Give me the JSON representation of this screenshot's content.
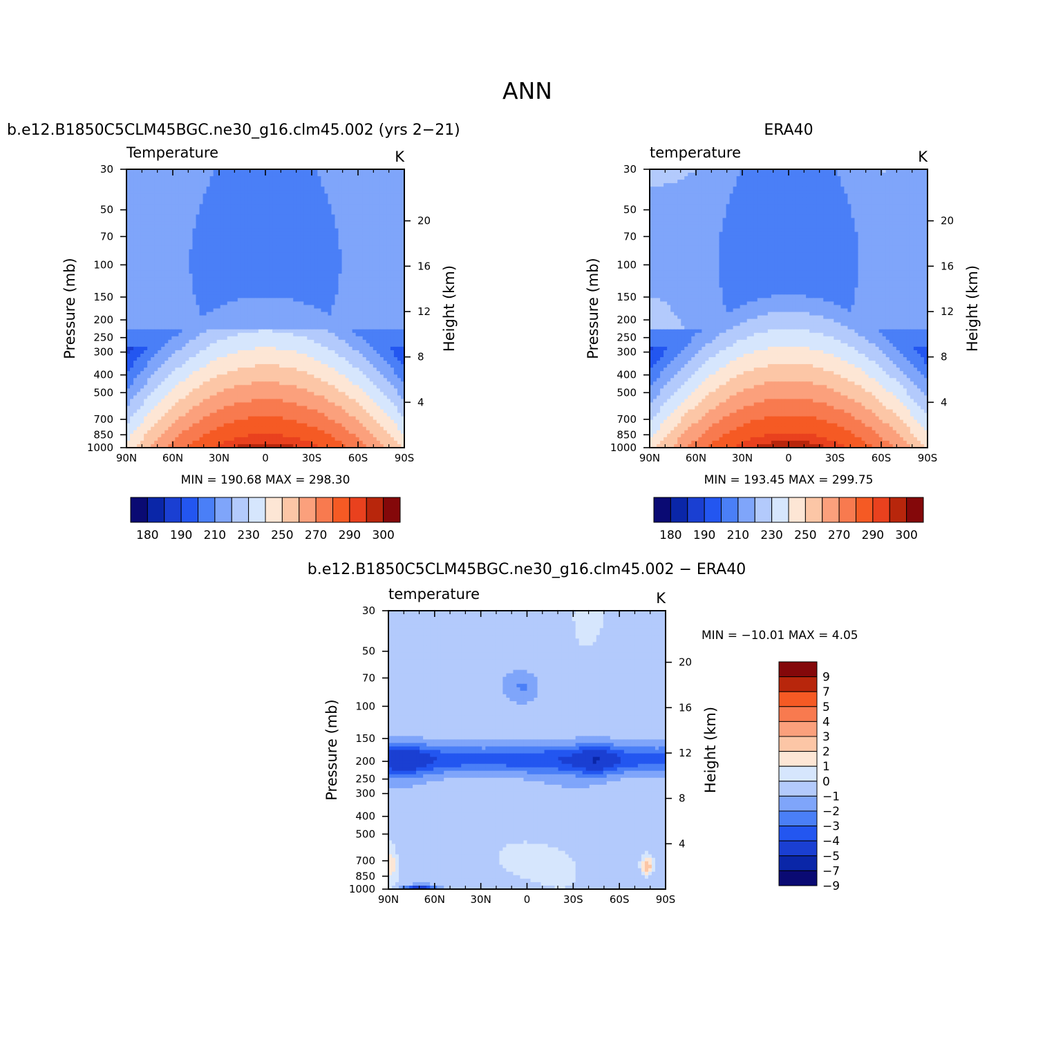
{
  "title": "ANN",
  "palette_abs": [
    "#0a0a73",
    "#0a26a8",
    "#1a3fd2",
    "#2356f0",
    "#4a7ff7",
    "#7fa5fa",
    "#b3cafc",
    "#d6e6fd",
    "#fde6d5",
    "#fcc6a6",
    "#fba07c",
    "#f87a4f",
    "#f55a24",
    "#e9411e",
    "#b8260c",
    "#84080a"
  ],
  "palette_diff": [
    "#0a0a73",
    "#0a26a8",
    "#1a3fd2",
    "#2356f0",
    "#4a7ff7",
    "#7fa5fa",
    "#b3cafc",
    "#d6e6fd",
    "#fde6d5",
    "#fcc6a6",
    "#fba07c",
    "#f87a4f",
    "#f55a24",
    "#b8260c",
    "#84080a"
  ],
  "chart_data": [
    {
      "id": "panel-model",
      "type": "heatmap",
      "title": "b.e12.B1850C5CLM45BGC.ne30_g16.clm45.002 (yrs 2−21)",
      "left_string": "Temperature",
      "right_string": "K",
      "xlabel": "",
      "ylabel": "Pressure (mb)",
      "ylabel_right": "Height (km)",
      "x_range": [
        90,
        -90
      ],
      "y_range": [
        1000,
        30
      ],
      "x_ticks": [
        "90N",
        "60N",
        "30N",
        "0",
        "30S",
        "60S",
        "90S"
      ],
      "y_ticks": [
        "30",
        "50",
        "70",
        "100",
        "150",
        "200",
        "250",
        "300",
        "400",
        "500",
        "700",
        "850",
        "1000"
      ],
      "height_ticks": [
        "4",
        "8",
        "12",
        "16",
        "20"
      ],
      "stats": "MIN =  190.68   MAX =  298.30",
      "min": 190.68,
      "max": 298.3,
      "colorbar_labels": [
        "180",
        "190",
        "210",
        "230",
        "250",
        "270",
        "290",
        "300"
      ],
      "units": "K"
    },
    {
      "id": "panel-obs",
      "type": "heatmap",
      "title": "ERA40",
      "left_string": "temperature",
      "right_string": "K",
      "xlabel": "",
      "ylabel": "Pressure (mb)",
      "ylabel_right": "Height (km)",
      "x_range": [
        90,
        -90
      ],
      "y_range": [
        1000,
        30
      ],
      "x_ticks": [
        "90N",
        "60N",
        "30N",
        "0",
        "30S",
        "60S",
        "90S"
      ],
      "y_ticks": [
        "30",
        "50",
        "70",
        "100",
        "150",
        "200",
        "250",
        "300",
        "400",
        "500",
        "700",
        "850",
        "1000"
      ],
      "height_ticks": [
        "4",
        "8",
        "12",
        "16",
        "20"
      ],
      "stats": "MIN =  193.45   MAX =  299.75",
      "min": 193.45,
      "max": 299.75,
      "colorbar_labels": [
        "180",
        "190",
        "210",
        "230",
        "250",
        "270",
        "290",
        "300"
      ],
      "units": "K"
    },
    {
      "id": "panel-diff",
      "type": "heatmap",
      "title": "b.e12.B1850C5CLM45BGC.ne30_g16.clm45.002 − ERA40",
      "left_string": "temperature",
      "right_string": "K",
      "xlabel": "",
      "ylabel": "Pressure (mb)",
      "ylabel_right": "Height (km)",
      "x_range": [
        90,
        -90
      ],
      "y_range": [
        1000,
        30
      ],
      "x_ticks": [
        "90N",
        "60N",
        "30N",
        "0",
        "30S",
        "60S",
        "90S"
      ],
      "y_ticks": [
        "30",
        "50",
        "70",
        "100",
        "150",
        "200",
        "250",
        "300",
        "400",
        "500",
        "700",
        "850",
        "1000"
      ],
      "height_ticks": [
        "4",
        "8",
        "12",
        "16",
        "20"
      ],
      "stats": "MIN = −10.01   MAX =     4.05",
      "min": -10.01,
      "max": 4.05,
      "colorbar_labels": [
        "9",
        "7",
        "5",
        "4",
        "3",
        "2",
        "1",
        "0",
        "−1",
        "−2",
        "−3",
        "−4",
        "−5",
        "−7",
        "−9"
      ],
      "units": "K"
    }
  ]
}
